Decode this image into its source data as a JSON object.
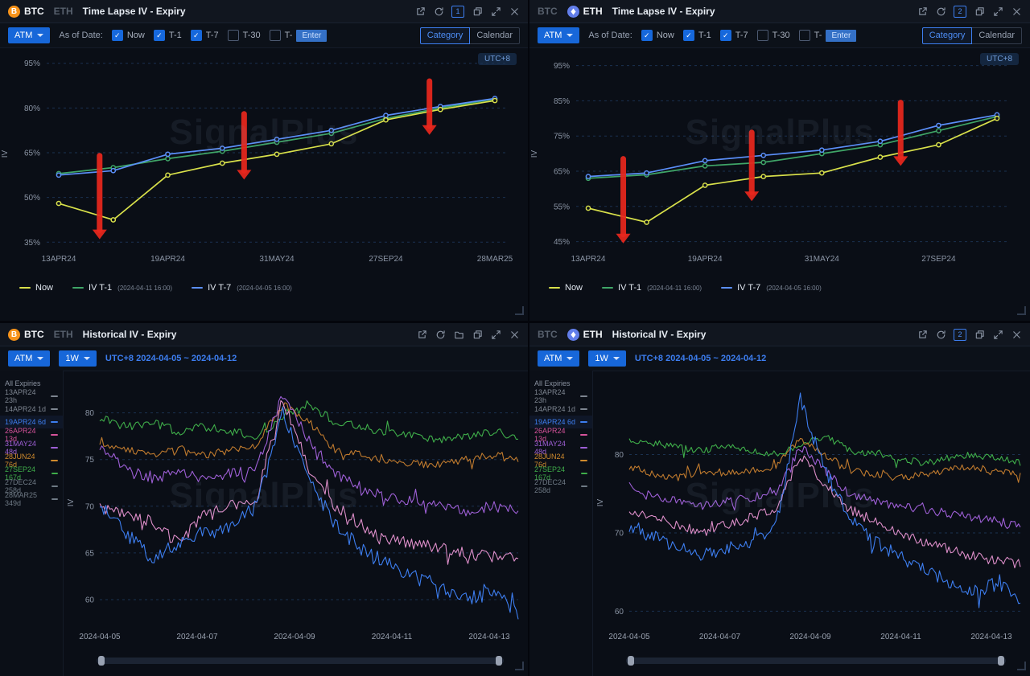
{
  "watermark": "SignalPlus",
  "panels": [
    {
      "kind": "timelapse",
      "name": "panel-btc-time-lapse",
      "coins": [
        {
          "label": "BTC",
          "active": true
        },
        {
          "label": "ETH",
          "active": false
        }
      ],
      "title": "Time Lapse IV - Expiry",
      "header_icons": [
        "external-link",
        "refresh",
        "badge",
        "duplicate",
        "fullscreen",
        "close"
      ],
      "badge": "1",
      "toolbar": {
        "atm": "ATM",
        "as_of_label": "As of Date:",
        "checkboxes": [
          {
            "label": "Now",
            "checked": true
          },
          {
            "label": "T-1",
            "checked": true
          },
          {
            "label": "T-7",
            "checked": true
          },
          {
            "label": "T-30",
            "checked": false
          },
          {
            "label": "T-",
            "checked": false
          }
        ],
        "enter_placeholder": "Enter",
        "view_toggle": [
          {
            "label": "Category",
            "active": true
          },
          {
            "label": "Calendar",
            "active": false
          }
        ]
      },
      "utc_badge": "UTC+8",
      "ylabel": "IV",
      "legend": [
        {
          "label": "Now",
          "sub": "",
          "color": "#d8e04a"
        },
        {
          "label": "IV T-1",
          "sub": "(2024-04-11 16:00)",
          "color": "#3fa567"
        },
        {
          "label": "IV T-7",
          "sub": "(2024-04-05 16:00)",
          "color": "#5b8ff9"
        }
      ],
      "chart_index": 0
    },
    {
      "kind": "timelapse",
      "name": "panel-eth-time-lapse",
      "coins": [
        {
          "label": "BTC",
          "active": false
        },
        {
          "label": "ETH",
          "active": true
        }
      ],
      "title": "Time Lapse IV - Expiry",
      "header_icons": [
        "external-link",
        "refresh",
        "badge",
        "duplicate",
        "fullscreen",
        "close"
      ],
      "badge": "2",
      "toolbar": {
        "atm": "ATM",
        "as_of_label": "As of Date:",
        "checkboxes": [
          {
            "label": "Now",
            "checked": true
          },
          {
            "label": "T-1",
            "checked": true
          },
          {
            "label": "T-7",
            "checked": true
          },
          {
            "label": "T-30",
            "checked": false
          },
          {
            "label": "T-",
            "checked": false
          }
        ],
        "enter_placeholder": "Enter",
        "view_toggle": [
          {
            "label": "Category",
            "active": true
          },
          {
            "label": "Calendar",
            "active": false
          }
        ]
      },
      "utc_badge": "UTC+8",
      "ylabel": "IV",
      "legend": [
        {
          "label": "Now",
          "sub": "",
          "color": "#d8e04a"
        },
        {
          "label": "IV T-1",
          "sub": "(2024-04-11 16:00)",
          "color": "#3fa567"
        },
        {
          "label": "IV T-7",
          "sub": "(2024-04-05 16:00)",
          "color": "#5b8ff9"
        }
      ],
      "chart_index": 1
    },
    {
      "kind": "historical",
      "name": "panel-btc-historical",
      "coins": [
        {
          "label": "BTC",
          "active": true
        },
        {
          "label": "ETH",
          "active": false
        }
      ],
      "title": "Historical IV - Expiry",
      "header_icons": [
        "external-link",
        "refresh",
        "folder",
        "duplicate",
        "fullscreen",
        "close"
      ],
      "toolbar": {
        "atm": "ATM",
        "period": "1W",
        "range_text": "UTC+8 2024-04-05 ~ 2024-04-12"
      },
      "ylabel": "IV",
      "expiry_list": [
        {
          "label": "All Expiries",
          "color": "#8a92a0",
          "dash": false
        },
        {
          "label": "13APR24 23h",
          "color": "#7d8590",
          "dash": true
        },
        {
          "label": "14APR24 1d",
          "color": "#7d8590",
          "dash": true
        },
        {
          "label": "19APR24 6d",
          "color": "#3d7ef0",
          "dash": true
        },
        {
          "label": "26APR24 13d",
          "color": "#d6539b",
          "dash": true
        },
        {
          "label": "31MAY24 48d",
          "color": "#9e5fd6",
          "dash": true
        },
        {
          "label": "28JUN24 76d",
          "color": "#cf8a2d",
          "dash": true
        },
        {
          "label": "27SEP24 167d",
          "color": "#3fae4a",
          "dash": true
        },
        {
          "label": "27DEC24 258d",
          "color": "#6f7a85",
          "dash": true
        },
        {
          "label": "28MAR25 349d",
          "color": "#6f7a85",
          "dash": true
        }
      ],
      "chart_index": 2
    },
    {
      "kind": "historical",
      "name": "panel-eth-historical",
      "coins": [
        {
          "label": "BTC",
          "active": false
        },
        {
          "label": "ETH",
          "active": true
        }
      ],
      "title": "Historical IV - Expiry",
      "header_icons": [
        "external-link",
        "refresh",
        "badge",
        "duplicate",
        "fullscreen",
        "close"
      ],
      "badge": "2",
      "toolbar": {
        "atm": "ATM",
        "period": "1W",
        "range_text": "UTC+8 2024-04-05 ~ 2024-04-12"
      },
      "ylabel": "IV",
      "expiry_list": [
        {
          "label": "All Expiries",
          "color": "#8a92a0",
          "dash": false
        },
        {
          "label": "13APR24 23h",
          "color": "#7d8590",
          "dash": true
        },
        {
          "label": "14APR24 1d",
          "color": "#7d8590",
          "dash": true
        },
        {
          "label": "19APR24 6d",
          "color": "#3d7ef0",
          "dash": true
        },
        {
          "label": "26APR24 13d",
          "color": "#d6539b",
          "dash": true
        },
        {
          "label": "31MAY24 48d",
          "color": "#9e5fd6",
          "dash": true
        },
        {
          "label": "28JUN24 76d",
          "color": "#cf8a2d",
          "dash": true
        },
        {
          "label": "27SEP24 167d",
          "color": "#3fae4a",
          "dash": true
        },
        {
          "label": "27DEC24 258d",
          "color": "#6f7a85",
          "dash": true
        }
      ],
      "chart_index": 3
    }
  ],
  "chart_data": [
    {
      "type": "line",
      "title": "BTC Time Lapse IV - Expiry",
      "xlabel": "",
      "ylabel": "IV",
      "ylim": [
        34,
        96
      ],
      "yticks": [
        35,
        50,
        65,
        80,
        95
      ],
      "ytick_suffix": "%",
      "grid": "dashed-horizontal",
      "legend_position": "bottom",
      "categories": [
        "13APR24",
        "14APR24",
        "19APR24",
        "26APR24",
        "31MAY24",
        "28JUN24",
        "27SEP24",
        "27DEC24",
        "28MAR25"
      ],
      "x_tick_indices": [
        0,
        2,
        4,
        6,
        8
      ],
      "series": [
        {
          "name": "IV T-1(2024-04-11 16:00)",
          "color": "#3fa567",
          "values": [
            58,
            60,
            63,
            65.5,
            68.5,
            71.5,
            76.5,
            80,
            83
          ]
        },
        {
          "name": "IV T-7(2024-04-05 16:00)",
          "color": "#5b8ff9",
          "values": [
            57.5,
            59,
            64.5,
            66.5,
            69.5,
            72.5,
            77.5,
            80.5,
            83.2
          ]
        },
        {
          "name": "Now",
          "color": "#d8e04a",
          "values": [
            48,
            42.5,
            57.5,
            61.5,
            64.5,
            68,
            76,
            79.5,
            82.5
          ]
        }
      ],
      "annotations": [
        {
          "type": "arrow-down",
          "x_index": 0.75,
          "y_from": 64,
          "y_to": 36
        },
        {
          "type": "arrow-down",
          "x_index": 3.4,
          "y_from": 78,
          "y_to": 56
        },
        {
          "type": "arrow-down",
          "x_index": 6.8,
          "y_from": 89,
          "y_to": 71
        }
      ]
    },
    {
      "type": "line",
      "title": "ETH Time Lapse IV - Expiry",
      "xlabel": "",
      "ylabel": "IV",
      "ylim": [
        44,
        96.5
      ],
      "yticks": [
        45,
        55,
        65,
        75,
        85,
        95
      ],
      "ytick_suffix": "%",
      "grid": "dashed-horizontal",
      "legend_position": "bottom",
      "categories": [
        "13APR24",
        "14APR24",
        "19APR24",
        "26APR24",
        "31MAY24",
        "28JUN24",
        "27SEP24",
        "27DEC24"
      ],
      "x_tick_indices": [
        0,
        2,
        4,
        6
      ],
      "series": [
        {
          "name": "IV T-1(2024-04-11 16:00)",
          "color": "#3fa567",
          "values": [
            63,
            64,
            66.5,
            67.5,
            70,
            72.5,
            76.5,
            80.5
          ]
        },
        {
          "name": "IV T-7(2024-04-05 16:00)",
          "color": "#5b8ff9",
          "values": [
            63.5,
            64.5,
            68,
            69.5,
            71,
            73.5,
            78,
            81
          ]
        },
        {
          "name": "Now",
          "color": "#d8e04a",
          "values": [
            54.5,
            50.5,
            61,
            63.5,
            64.5,
            69,
            72.5,
            80
          ]
        }
      ],
      "annotations": [
        {
          "type": "arrow-down",
          "x_index": 0.6,
          "y_from": 68.5,
          "y_to": 44.5
        },
        {
          "type": "arrow-down",
          "x_index": 2.8,
          "y_from": 76,
          "y_to": 56.5
        },
        {
          "type": "arrow-down",
          "x_index": 5.35,
          "y_from": 84.5,
          "y_to": 66.5
        }
      ]
    },
    {
      "type": "line",
      "title": "BTC Historical IV - Expiry",
      "xlabel": "",
      "ylabel": "IV",
      "noisy": true,
      "ylim": [
        57.5,
        83.5
      ],
      "yticks": [
        60,
        65,
        70,
        75,
        80
      ],
      "grid": "dashed-horizontal",
      "x_labels": [
        "2024-04-05",
        "2024-04-07",
        "2024-04-09",
        "2024-04-11",
        "2024-04-13"
      ],
      "series": [
        {
          "name": "27SEP24 167d",
          "color": "#3fae4a",
          "noise": 0.45,
          "anchors": [
            79.5,
            78.5,
            79,
            78,
            78.5,
            78,
            77.5,
            79.5,
            81,
            79,
            78.5,
            78,
            77.5,
            77,
            77.5,
            78,
            77.5
          ]
        },
        {
          "name": "28JUN24 76d",
          "color": "#bf7a2e",
          "noise": 0.45,
          "anchors": [
            77,
            76,
            75.5,
            76,
            75.5,
            76,
            76.5,
            81,
            79,
            76,
            75.5,
            75,
            74.5,
            74.5,
            75,
            75.5,
            75.2
          ]
        },
        {
          "name": "31MAY24 48d",
          "color": "#9e5fd6",
          "noise": 0.55,
          "anchors": [
            76.5,
            74,
            73,
            73.5,
            73,
            73.5,
            74,
            82,
            77,
            73.5,
            72,
            71,
            70.5,
            70,
            69.5,
            70,
            69.5
          ]
        },
        {
          "name": "26APR24 13d",
          "color": "#dd8ec9",
          "noise": 0.65,
          "anchors": [
            70,
            69,
            68.5,
            66,
            69,
            70,
            71,
            81.5,
            74,
            70,
            68,
            66.5,
            66,
            65.5,
            65,
            64.5,
            64.5
          ]
        },
        {
          "name": "19APR24 6d",
          "color": "#3d7ef0",
          "noise": 0.8,
          "anchors": [
            70,
            67,
            64.5,
            66,
            67,
            68,
            70,
            80,
            73,
            68,
            65.5,
            64,
            62.5,
            61.5,
            60,
            60.8,
            58.5
          ]
        }
      ]
    },
    {
      "type": "line",
      "title": "ETH Historical IV - Expiry",
      "xlabel": "",
      "ylabel": "IV",
      "noisy": true,
      "ylim": [
        58.5,
        89.5
      ],
      "yticks": [
        60,
        70,
        80
      ],
      "grid": "dashed-horizontal",
      "x_labels": [
        "2024-04-05",
        "2024-04-07",
        "2024-04-09",
        "2024-04-11",
        "2024-04-13"
      ],
      "series": [
        {
          "name": "27SEP24 167d",
          "color": "#3fae4a",
          "noise": 0.45,
          "anchors": [
            82,
            81.5,
            81,
            80.5,
            81,
            80.5,
            80,
            81,
            82.5,
            80.5,
            80,
            79.5,
            79,
            79.5,
            80,
            79.5,
            79
          ]
        },
        {
          "name": "28JUN24 76d",
          "color": "#bf7a2e",
          "noise": 0.45,
          "anchors": [
            78.5,
            77.5,
            77,
            78,
            77.5,
            78,
            78.5,
            82,
            80,
            78,
            77.5,
            77,
            77.5,
            78,
            78.5,
            78,
            77.5
          ]
        },
        {
          "name": "31MAY24 48d",
          "color": "#9e5fd6",
          "noise": 0.55,
          "anchors": [
            76,
            74.5,
            74,
            73.5,
            74,
            74.5,
            75,
            81,
            78,
            75,
            74,
            73.5,
            73,
            72.5,
            72,
            71.5,
            71
          ]
        },
        {
          "name": "26APR24 13d",
          "color": "#dd8ec9",
          "noise": 0.65,
          "anchors": [
            73,
            72,
            71,
            70,
            71,
            72,
            73,
            80,
            76,
            73,
            71.5,
            70,
            69,
            68,
            67,
            66.5,
            66
          ]
        },
        {
          "name": "19APR24 6d",
          "color": "#3d7ef0",
          "noise": 0.9,
          "anchors": [
            71,
            69.5,
            68,
            67,
            68,
            69,
            71,
            87,
            78,
            72,
            69,
            67,
            65.5,
            64,
            62.5,
            63.5,
            61.5
          ]
        }
      ]
    }
  ]
}
